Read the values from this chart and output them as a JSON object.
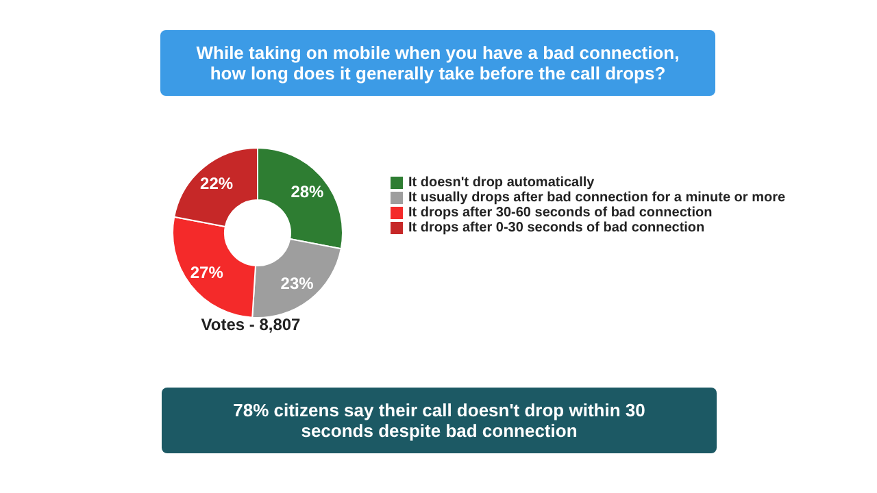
{
  "chart_data": {
    "type": "donut",
    "title": "While taking on mobile when you have a bad connection, how long does it generally take before the call drops?",
    "categories": [
      "It doesn't drop automatically",
      "It usually drops after bad connection for a minute or more",
      "It drops after 30-60 seconds of bad connection",
      "It drops after 0-30 seconds of bad connection"
    ],
    "values": [
      28,
      23,
      27,
      22
    ],
    "colors": [
      "#2e7d32",
      "#9e9e9e",
      "#f42a2a",
      "#c62828"
    ],
    "value_labels": [
      "28%",
      "23%",
      "27%",
      "22%"
    ],
    "legend": "right",
    "annotations": [
      "Votes - 8,807",
      "78% citizens say their call doesn't drop within 30 seconds despite bad connection"
    ]
  }
}
